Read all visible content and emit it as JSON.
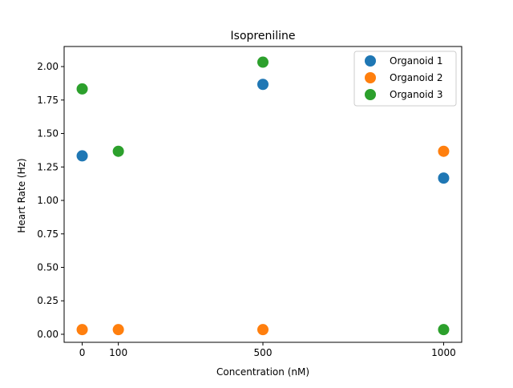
{
  "chart_data": {
    "type": "scatter",
    "title": "Isopreniline",
    "xlabel": "Concentration (nM)",
    "ylabel": "Heart Rate (Hz)",
    "x_ticks": [
      0,
      100,
      500,
      1000
    ],
    "x_tick_labels": [
      "0",
      "100",
      "500",
      "1000"
    ],
    "y_ticks": [
      0.0,
      0.25,
      0.5,
      0.75,
      1.0,
      1.25,
      1.5,
      1.75,
      2.0
    ],
    "y_tick_labels": [
      "0.00",
      "0.25",
      "0.50",
      "0.75",
      "1.00",
      "1.25",
      "1.50",
      "1.75",
      "2.00"
    ],
    "xlim": [
      -50,
      1050
    ],
    "ylim": [
      -0.06,
      2.15
    ],
    "grid": false,
    "legend_position": "top-right",
    "series": [
      {
        "name": "Organoid 1",
        "color": "#1f77b4",
        "x": [
          0,
          500,
          1000
        ],
        "y": [
          1.333,
          1.867,
          1.167
        ]
      },
      {
        "name": "Organoid 2",
        "color": "#ff7f0e",
        "x": [
          0,
          100,
          500,
          1000
        ],
        "y": [
          0.035,
          0.035,
          0.035,
          1.367
        ]
      },
      {
        "name": "Organoid 3",
        "color": "#2ca02c",
        "x": [
          0,
          100,
          500,
          1000
        ],
        "y": [
          1.833,
          1.367,
          2.033,
          0.035
        ]
      }
    ]
  }
}
